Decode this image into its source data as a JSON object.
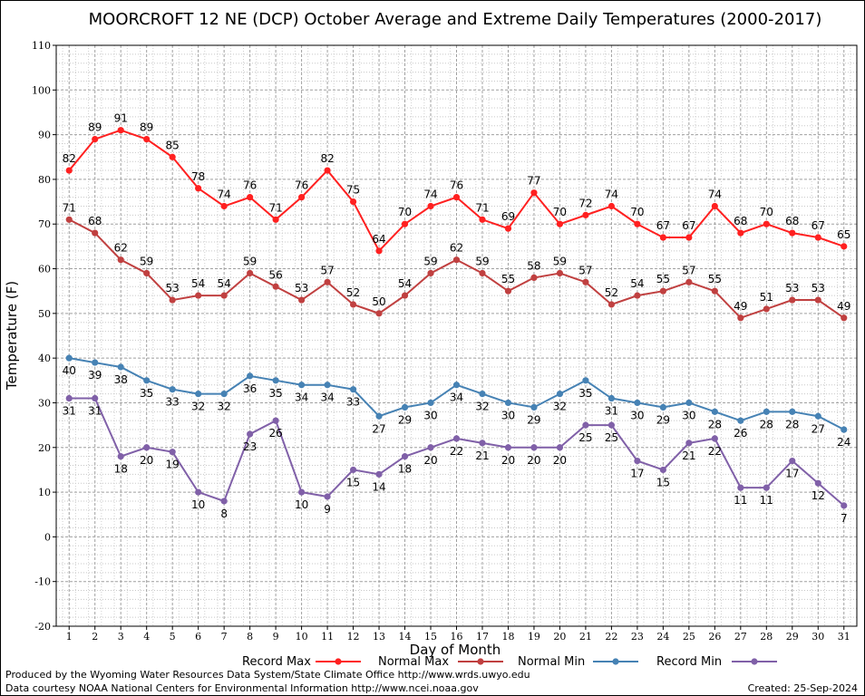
{
  "chart_data": {
    "type": "line",
    "title": "MOORCROFT 12 NE (DCP) October Average and Extreme Daily Temperatures (2000-2017)",
    "xlabel": "Day of Month",
    "ylabel": "Temperature (F)",
    "ylim": [
      -20,
      110
    ],
    "yticks": [
      -20,
      -10,
      0,
      10,
      20,
      30,
      40,
      50,
      60,
      70,
      80,
      90,
      100,
      110
    ],
    "x": [
      1,
      2,
      3,
      4,
      5,
      6,
      7,
      8,
      9,
      10,
      11,
      12,
      13,
      14,
      15,
      16,
      17,
      18,
      19,
      20,
      21,
      22,
      23,
      24,
      25,
      26,
      27,
      28,
      29,
      30,
      31
    ],
    "grid": true,
    "legend_position": "bottom",
    "series": [
      {
        "name": "Record Max",
        "color": "#ff2020",
        "label_pos": "above",
        "values": [
          82,
          89,
          91,
          89,
          85,
          78,
          74,
          76,
          71,
          76,
          82,
          75,
          64,
          70,
          74,
          76,
          71,
          69,
          77,
          70,
          72,
          74,
          70,
          67,
          67,
          74,
          68,
          70,
          68,
          67,
          65
        ]
      },
      {
        "name": "Normal Max",
        "color": "#c04040",
        "label_pos": "above",
        "values": [
          71,
          68,
          62,
          59,
          53,
          54,
          54,
          59,
          56,
          53,
          57,
          52,
          50,
          54,
          59,
          62,
          59,
          55,
          58,
          59,
          57,
          52,
          54,
          55,
          57,
          55,
          49,
          51,
          53,
          53,
          49
        ]
      },
      {
        "name": "Normal Min",
        "color": "#4682b4",
        "label_pos": "below",
        "values": [
          40,
          39,
          38,
          35,
          33,
          32,
          32,
          36,
          35,
          34,
          34,
          33,
          27,
          29,
          30,
          34,
          32,
          30,
          29,
          32,
          35,
          31,
          30,
          29,
          30,
          28,
          26,
          28,
          28,
          27,
          24
        ]
      },
      {
        "name": "Record Min",
        "color": "#8060a8",
        "label_pos": "below",
        "values": [
          31,
          31,
          18,
          20,
          19,
          10,
          8,
          23,
          26,
          10,
          9,
          15,
          14,
          18,
          20,
          22,
          21,
          20,
          20,
          20,
          25,
          25,
          17,
          15,
          21,
          22,
          11,
          11,
          17,
          12,
          7
        ]
      }
    ]
  },
  "footer": {
    "produced_by": "Produced by the Wyoming Water Resources Data System/State Climate Office http://www.wrds.uwyo.edu",
    "data_courtesy": "Data courtesy NOAA National Centers for Environmental Information http://www.ncei.noaa.gov",
    "created": "Created:  25-Sep-2024"
  }
}
